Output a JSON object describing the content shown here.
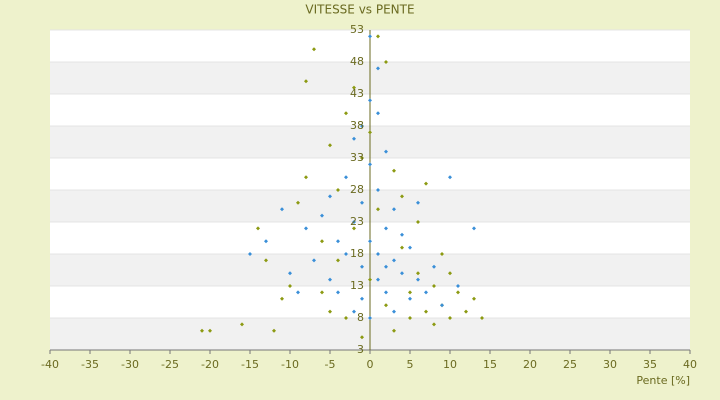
{
  "chart_data": {
    "type": "scatter",
    "title": "VITESSE vs PENTE",
    "x_label": "Pente [%]",
    "xlim": [
      -40,
      40
    ],
    "xticks": [
      -40,
      -35,
      -30,
      -25,
      -20,
      -15,
      -10,
      -5,
      0,
      5,
      10,
      15,
      20,
      25,
      30,
      35,
      40
    ],
    "ylim": [
      3,
      53
    ],
    "yticks": [
      3,
      8,
      13,
      18,
      23,
      28,
      33,
      38,
      43,
      48,
      53
    ],
    "grid": true,
    "series": [
      {
        "color": "#8c9a12",
        "x": [
          -21,
          -20,
          -16,
          -12,
          -11,
          -10,
          -9,
          -8,
          -8,
          -7,
          -6,
          -6,
          -5,
          -5,
          -4,
          -4,
          -3,
          -3,
          -2,
          -2,
          -1,
          -1,
          0,
          0,
          1,
          1,
          2,
          2,
          3,
          3,
          4,
          4,
          5,
          5,
          6,
          6,
          7,
          7,
          8,
          8,
          9,
          9,
          10,
          10,
          11,
          12,
          13,
          14,
          -13,
          -14
        ],
        "values": [
          6,
          6,
          7,
          6,
          11,
          13,
          26,
          30,
          45,
          50,
          20,
          12,
          35,
          9,
          28,
          17,
          40,
          8,
          44,
          22,
          33,
          5,
          14,
          37,
          52,
          25,
          48,
          10,
          31,
          6,
          19,
          27,
          12,
          8,
          23,
          15,
          9,
          29,
          13,
          7,
          18,
          10,
          15,
          8,
          12,
          9,
          11,
          8,
          17,
          22
        ]
      },
      {
        "color": "#3a8fd8",
        "x": [
          -15,
          -13,
          -10,
          -8,
          -7,
          -6,
          -5,
          -5,
          -4,
          -4,
          -3,
          -3,
          -2,
          -2,
          -2,
          -1,
          -1,
          -1,
          0,
          0,
          0,
          0,
          1,
          1,
          1,
          1,
          2,
          2,
          2,
          3,
          3,
          3,
          4,
          4,
          5,
          5,
          6,
          6,
          7,
          8,
          9,
          10,
          11,
          13,
          -9,
          -11,
          0,
          1,
          -1,
          2
        ],
        "values": [
          18,
          20,
          15,
          22,
          17,
          24,
          14,
          27,
          20,
          12,
          30,
          18,
          23,
          9,
          36,
          16,
          26,
          11,
          20,
          32,
          42,
          8,
          18,
          28,
          14,
          47,
          22,
          12,
          34,
          17,
          25,
          9,
          15,
          21,
          11,
          19,
          14,
          26,
          12,
          16,
          10,
          30,
          13,
          22,
          12,
          25,
          52,
          40,
          38,
          16
        ]
      }
    ]
  }
}
